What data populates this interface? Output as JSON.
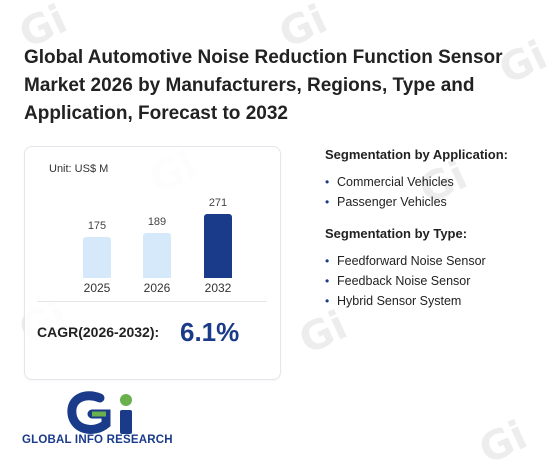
{
  "header": {
    "title": "Global Automotive Noise Reduction Function Sensor Market 2026 by Manufacturers, Regions, Type and Application, Forecast to 2032"
  },
  "chart_card": {
    "unit_label": "Unit: US$ M",
    "cagr_label": "CAGR(2026-2032):",
    "cagr_value": "6.1%"
  },
  "chart_data": {
    "type": "bar",
    "categories": [
      "2025",
      "2026",
      "2032"
    ],
    "values": [
      175,
      189,
      271
    ],
    "value_labels": [
      "175",
      "189",
      "271"
    ],
    "colors": [
      "#d6e9fb",
      "#d6e9fb",
      "#1a3a8a"
    ],
    "ylim": [
      0,
      300
    ]
  },
  "segmentation": {
    "application": {
      "title": "Segmentation by Application:",
      "items": [
        "Commercial Vehicles",
        "Passenger Vehicles"
      ]
    },
    "type": {
      "title": "Segmentation by Type:",
      "items": [
        "Feedforward Noise Sensor",
        "Feedback Noise Sensor",
        "Hybrid Sensor System"
      ]
    },
    "bullet_glyph": "•"
  },
  "logo": {
    "text": "GLOBAL INFO RESEARCH",
    "colors": {
      "primary": "#1a3a8a",
      "accent": "#6ab04c"
    }
  }
}
